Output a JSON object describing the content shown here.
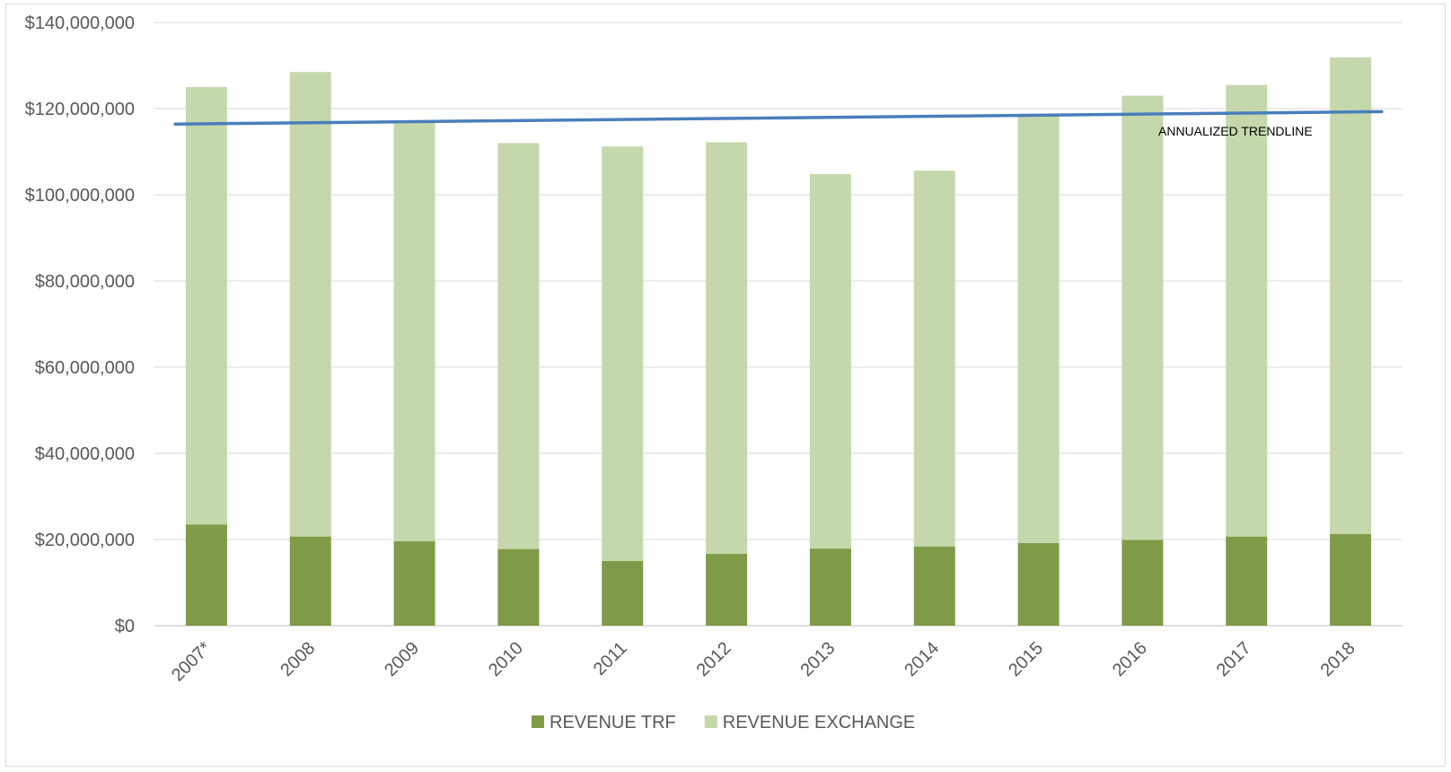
{
  "chart_data": {
    "type": "bar",
    "stacked": true,
    "categories": [
      "2007*",
      "2008",
      "2009",
      "2010",
      "2011",
      "2012",
      "2013",
      "2014",
      "2015",
      "2016",
      "2017",
      "2018"
    ],
    "series": [
      {
        "name": "REVENUE TRF",
        "color": "#7f9b47",
        "values": [
          23500000,
          20700000,
          19600000,
          17800000,
          15000000,
          16700000,
          17900000,
          18400000,
          19200000,
          19900000,
          20700000,
          21300000
        ]
      },
      {
        "name": "REVENUE EXCHANGE",
        "color": "#c5d8ab",
        "values": [
          101500000,
          107800000,
          97400000,
          94200000,
          96200000,
          95500000,
          86900000,
          87200000,
          99300000,
          103100000,
          104800000,
          110600000
        ]
      }
    ],
    "trendline": {
      "label": "ANNUALIZED TRENDLINE",
      "color": "#4a7ebb",
      "start": 116400000,
      "end": 119300000
    },
    "ylim": [
      0,
      140000000
    ],
    "yticks": [
      0,
      20000000,
      40000000,
      60000000,
      80000000,
      100000000,
      120000000,
      140000000
    ],
    "ytick_labels": [
      "$0",
      "$20,000,000",
      "$40,000,000",
      "$60,000,000",
      "$80,000,000",
      "$100,000,000",
      "$120,000,000",
      "$140,000,000"
    ],
    "grid": true,
    "legend_position": "bottom",
    "title": "",
    "xlabel": "",
    "ylabel": ""
  }
}
